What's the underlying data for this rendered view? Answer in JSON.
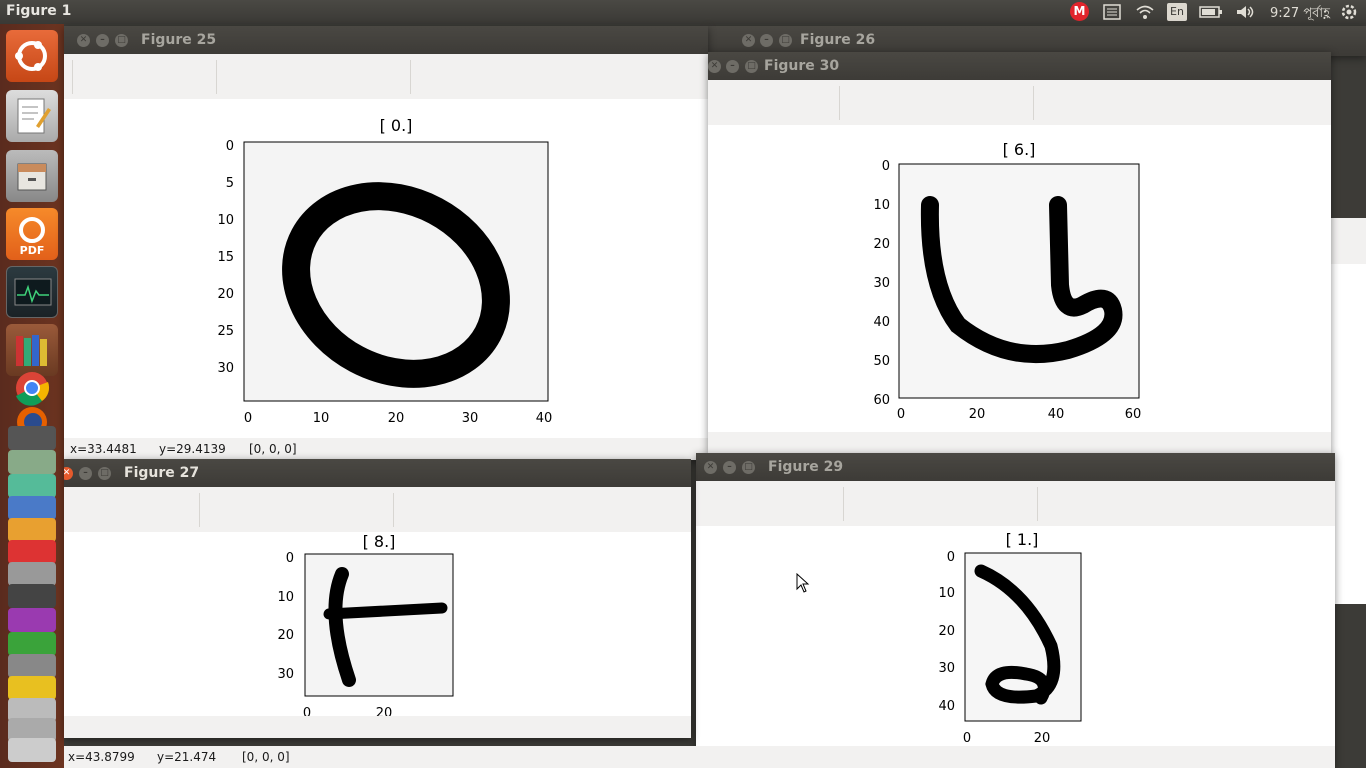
{
  "top_panel": {
    "title": "Figure 1",
    "clock": "9:27 পূর্বাহ্ণ",
    "lang": "En",
    "mail_badge": "M",
    "icons": [
      "mail-indicator-icon",
      "list-icon",
      "wifi-icon",
      "keyboard-layout-icon",
      "battery-icon",
      "volume-icon",
      "power-gear-icon"
    ]
  },
  "launcher": {
    "items": [
      "ubuntu-dash-icon",
      "text-editor-icon",
      "file-manager-icon",
      "pdf-reader-icon",
      "system-monitor-icon",
      "library-icon",
      "chrome-icon",
      "firefox-icon",
      "stacked-apps-icon"
    ]
  },
  "windows": {
    "fig25": {
      "title": "Figure 25",
      "plot_title": "[ 0.]",
      "xticks": [
        "0",
        "10",
        "20",
        "30",
        "40"
      ],
      "yticks": [
        "0",
        "5",
        "10",
        "15",
        "20",
        "25",
        "30"
      ],
      "status_x": "x=33.4481",
      "status_y": "y=29.4139",
      "status_val": "[0, 0, 0]"
    },
    "fig26": {
      "title": "Figure 26"
    },
    "fig30": {
      "title": "Figure 30",
      "plot_title": "[ 6.]",
      "xticks": [
        "0",
        "20",
        "40",
        "60"
      ],
      "yticks": [
        "0",
        "10",
        "20",
        "30",
        "40",
        "50",
        "60"
      ]
    },
    "fig27": {
      "title": "Figure 27",
      "plot_title": "[ 8.]",
      "xticks": [
        "0",
        "20"
      ],
      "yticks": [
        "0",
        "10",
        "20",
        "30"
      ],
      "status_x": "x=43.8799",
      "status_y": "y=21.474",
      "status_val": "[0, 0, 0]"
    },
    "fig29": {
      "title": "Figure 29",
      "plot_title": "[ 1.]",
      "xticks": [
        "0",
        "20"
      ],
      "yticks": [
        "0",
        "10",
        "20",
        "30",
        "40"
      ]
    }
  },
  "colors": {
    "panel": "#3c3b37",
    "launcher": "#5a2b1e",
    "close_active": "#e65a2c"
  }
}
